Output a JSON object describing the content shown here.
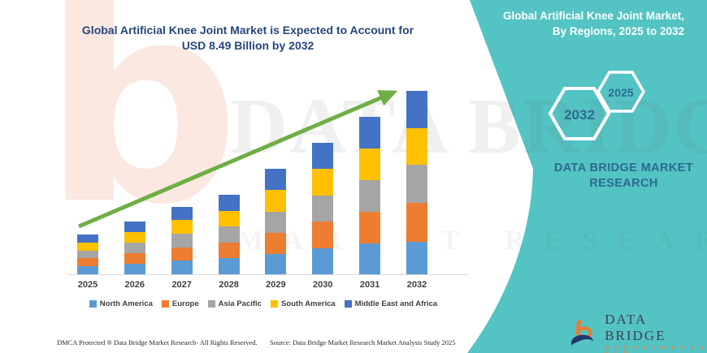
{
  "header": {
    "title_line1": "Global Artificial Knee Joint Market is Expected to Account for",
    "title_line2": "USD 8.49 Billion by 2032"
  },
  "side_panel": {
    "title_line1": "Global Artificial Knee Joint Market,",
    "title_line2": "By Regions, 2025 to 2032",
    "hex_large": {
      "label": "2032"
    },
    "hex_small": {
      "label": "2025"
    },
    "brand_line1": "DATA BRIDGE MARKET",
    "brand_line2": "RESEARCH",
    "accent_teal": "#53c3c3"
  },
  "logo": {
    "name": "DATA BRIDGE",
    "subtitle": "M A R K E T   R E S E A R C H"
  },
  "watermark": {
    "letter": "b",
    "line1": "DATA BRIDGE",
    "line2": "MARKET RESEARCH"
  },
  "footer": {
    "left": "DMCA Protected ® Data Bridge Market Research-  All Rights Reserved.",
    "right": "Source: Data Bridge Market Research  Market Analysis Study 2025"
  },
  "chart_data": {
    "type": "bar",
    "stacked": true,
    "title": "Global Artificial Knee Joint Market is Expected to Account for USD 8.49 Billion by 2032",
    "unit": "USD Billion",
    "categories": [
      "2025",
      "2026",
      "2027",
      "2028",
      "2029",
      "2030",
      "2031",
      "2032"
    ],
    "series": [
      {
        "name": "North America",
        "color": "#5B9BD5",
        "values": [
          0.37,
          0.49,
          0.63,
          0.74,
          0.93,
          1.22,
          1.43,
          1.52
        ]
      },
      {
        "name": "Europe",
        "color": "#ED7D31",
        "values": [
          0.37,
          0.49,
          0.62,
          0.74,
          0.99,
          1.22,
          1.47,
          1.78
        ]
      },
      {
        "name": "Asia Pacific",
        "color": "#A5A5A5",
        "values": [
          0.37,
          0.49,
          0.62,
          0.73,
          0.98,
          1.22,
          1.46,
          1.78
        ]
      },
      {
        "name": "South America",
        "color": "#FFC000",
        "values": [
          0.37,
          0.49,
          0.63,
          0.74,
          0.99,
          1.22,
          1.47,
          1.7
        ]
      },
      {
        "name": "Middle East and Africa",
        "color": "#4472C4",
        "values": [
          0.36,
          0.48,
          0.62,
          0.73,
          0.99,
          1.21,
          1.46,
          1.71
        ]
      }
    ],
    "totals": [
      1.84,
      2.44,
      3.12,
      3.68,
      4.88,
      6.09,
      7.29,
      8.49
    ],
    "highlight_total": {
      "year": "2032",
      "value": 8.49
    },
    "ylim": [
      0,
      9
    ],
    "grid": false,
    "legend_position": "bottom",
    "trend_arrow": {
      "present": true,
      "color": "#6FAE46"
    }
  }
}
